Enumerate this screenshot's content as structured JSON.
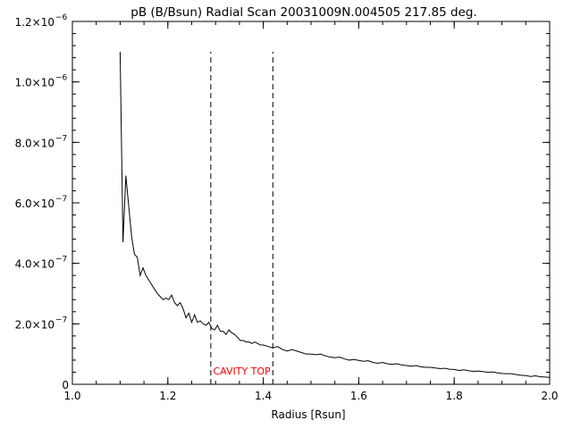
{
  "chart_data": {
    "type": "line",
    "title": "pB (B/Bsun) Radial Scan 20031009N.004505 217.85 deg.",
    "xlabel": "Radius [Rsun]",
    "ylabel": "",
    "xlim": [
      1.0,
      2.0
    ],
    "ylim": [
      0,
      1.2e-06
    ],
    "grid": false,
    "xticks": [
      {
        "value": 1.0,
        "label": "1.0"
      },
      {
        "value": 1.2,
        "label": "1.2"
      },
      {
        "value": 1.4,
        "label": "1.4"
      },
      {
        "value": 1.6,
        "label": "1.6"
      },
      {
        "value": 1.8,
        "label": "1.8"
      },
      {
        "value": 2.0,
        "label": "2.0"
      }
    ],
    "yticks": [
      {
        "value": 0,
        "label": "0",
        "exponent": ""
      },
      {
        "value": 2e-07,
        "label": "2.0×10",
        "exponent": "−7"
      },
      {
        "value": 4e-07,
        "label": "4.0×10",
        "exponent": "−7"
      },
      {
        "value": 6e-07,
        "label": "6.0×10",
        "exponent": "−7"
      },
      {
        "value": 8e-07,
        "label": "8.0×10",
        "exponent": "−7"
      },
      {
        "value": 1e-06,
        "label": "1.0×10",
        "exponent": "−6"
      },
      {
        "value": 1.2e-06,
        "label": "1.2×10",
        "exponent": "−6"
      }
    ],
    "series": [
      {
        "color": "#000000",
        "x": [
          1.1,
          1.106,
          1.112,
          1.118,
          1.124,
          1.13,
          1.136,
          1.142,
          1.148,
          1.154,
          1.16,
          1.166,
          1.172,
          1.178,
          1.184,
          1.19,
          1.196,
          1.202,
          1.208,
          1.214,
          1.22,
          1.226,
          1.232,
          1.238,
          1.244,
          1.25,
          1.256,
          1.262,
          1.268,
          1.274,
          1.28,
          1.286,
          1.292,
          1.298,
          1.304,
          1.31,
          1.316,
          1.322,
          1.328,
          1.334,
          1.34,
          1.346,
          1.352,
          1.358,
          1.364,
          1.37,
          1.376,
          1.382,
          1.388,
          1.394,
          1.4,
          1.41,
          1.42,
          1.43,
          1.44,
          1.45,
          1.46,
          1.47,
          1.48,
          1.49,
          1.5,
          1.51,
          1.52,
          1.53,
          1.54,
          1.55,
          1.56,
          1.57,
          1.58,
          1.59,
          1.6,
          1.61,
          1.62,
          1.63,
          1.64,
          1.65,
          1.66,
          1.67,
          1.68,
          1.69,
          1.7,
          1.71,
          1.72,
          1.73,
          1.74,
          1.75,
          1.76,
          1.77,
          1.78,
          1.79,
          1.8,
          1.81,
          1.82,
          1.83,
          1.84,
          1.85,
          1.86,
          1.87,
          1.88,
          1.89,
          1.9,
          1.91,
          1.92,
          1.93,
          1.94,
          1.95,
          1.96,
          1.97,
          1.98,
          1.99,
          2.0
        ],
        "y": [
          1.1e-06,
          4.7e-07,
          6.9e-07,
          5.9e-07,
          4.9e-07,
          4.3e-07,
          4.2e-07,
          3.6e-07,
          3.85e-07,
          3.6e-07,
          3.45e-07,
          3.3e-07,
          3.15e-07,
          3e-07,
          2.9e-07,
          2.8e-07,
          2.85e-07,
          2.8e-07,
          2.95e-07,
          2.7e-07,
          2.6e-07,
          2.7e-07,
          2.5e-07,
          2.2e-07,
          2.35e-07,
          2.05e-07,
          2.3e-07,
          2.05e-07,
          2.1e-07,
          2e-07,
          1.95e-07,
          2.05e-07,
          1.85e-07,
          1.8e-07,
          1.95e-07,
          1.75e-07,
          1.75e-07,
          1.65e-07,
          1.8e-07,
          1.7e-07,
          1.65e-07,
          1.55e-07,
          1.45e-07,
          1.45e-07,
          1.4e-07,
          1.4e-07,
          1.35e-07,
          1.4e-07,
          1.35e-07,
          1.3e-07,
          1.3e-07,
          1.25e-07,
          1.2e-07,
          1.25e-07,
          1.15e-07,
          1.1e-07,
          1.15e-07,
          1.1e-07,
          1.05e-07,
          1e-07,
          1e-07,
          9.8e-08,
          1e-07,
          9.4e-08,
          9e-08,
          8.8e-08,
          9e-08,
          8.4e-08,
          8e-08,
          8.2e-08,
          7.9e-08,
          7.6e-08,
          7.8e-08,
          7.2e-08,
          7e-08,
          7.2e-08,
          6.8e-08,
          6.6e-08,
          6.8e-08,
          6.4e-08,
          6.2e-08,
          6e-08,
          6.2e-08,
          5.8e-08,
          5.6e-08,
          5.6e-08,
          5.4e-08,
          5.2e-08,
          5.3e-08,
          5e-08,
          4.9e-08,
          4.6e-08,
          4.8e-08,
          4.5e-08,
          4.3e-08,
          4.4e-08,
          4.2e-08,
          4e-08,
          4.1e-08,
          3.8e-08,
          3.6e-08,
          3.5e-08,
          3.5e-08,
          3.2e-08,
          3e-08,
          2.9e-08,
          2.6e-08,
          2.8e-08,
          2.5e-08,
          2.4e-08,
          2.3e-08
        ]
      }
    ],
    "vlines": [
      {
        "x": 1.29,
        "y_range": [
          0,
          1.1e-06
        ],
        "style": "dashed",
        "color": "#000000"
      },
      {
        "x": 1.42,
        "y_range": [
          0,
          1.1e-06
        ],
        "style": "dashed",
        "color": "#000000"
      }
    ],
    "annotations": [
      {
        "text": "CAVITY TOP",
        "x": 1.355,
        "y": 3.3e-08,
        "color": "#ff0000"
      }
    ]
  }
}
